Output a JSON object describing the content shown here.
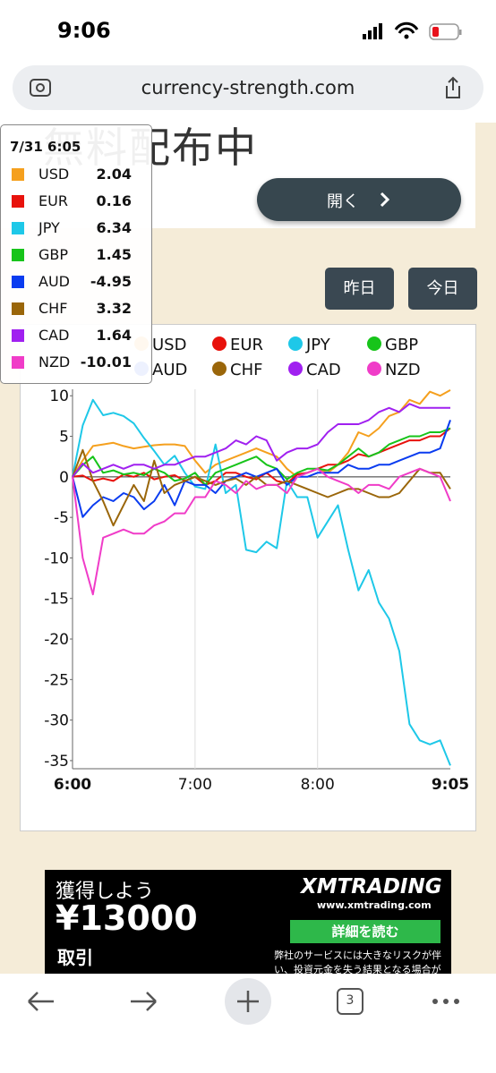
{
  "status_bar": {
    "time": "9:06"
  },
  "browser": {
    "url": "currency-strength.com",
    "tab_count": 3
  },
  "banner": {
    "title": "無料配布中",
    "button": "開く"
  },
  "day_buttons": [
    "昨日",
    "今日"
  ],
  "tooltip": {
    "title": "7/31 6:05"
  },
  "chart_data": {
    "type": "line",
    "categories": [
      "6:00",
      null,
      null,
      null,
      null,
      null,
      null,
      null,
      null,
      null,
      null,
      null,
      "7:00",
      null,
      null,
      null,
      null,
      null,
      null,
      null,
      null,
      null,
      null,
      null,
      "8:00",
      null,
      null,
      null,
      null,
      null,
      null,
      null,
      null,
      null,
      null,
      null,
      null,
      "9:05"
    ],
    "ylim": [
      -36,
      10.8
    ],
    "yticks": [
      10,
      5,
      0,
      -5,
      -10,
      -15,
      -20,
      -25,
      -30,
      -35
    ],
    "legend": "top",
    "series": [
      {
        "name": "USD",
        "color": "#f5a01e",
        "values": [
          0,
          2.04,
          3.8,
          4,
          4.2,
          3.8,
          3.5,
          3.7,
          3.9,
          4,
          4,
          3.8,
          2,
          0.5,
          1.5,
          2,
          2.5,
          3,
          3.5,
          3,
          2.5,
          1,
          0,
          0.5,
          1,
          0.5,
          1.5,
          3,
          5.5,
          5,
          6,
          7.5,
          8,
          9.5,
          9,
          10.5,
          10,
          10.7
        ]
      },
      {
        "name": "EUR",
        "color": "#e8120c",
        "values": [
          0,
          0.16,
          -0.5,
          -0.2,
          -0.5,
          0.3,
          0,
          0.5,
          -0.3,
          0,
          0.2,
          -0.5,
          0,
          -1,
          -0.5,
          0.5,
          0.5,
          0,
          -0.3,
          0.5,
          -0.5,
          -0.8,
          0.3,
          0.5,
          1,
          1.5,
          1.5,
          2,
          2.8,
          2.5,
          3,
          3.5,
          4,
          4.5,
          4.5,
          5,
          5,
          6
        ]
      },
      {
        "name": "JPY",
        "color": "#1ec8e8",
        "values": [
          0,
          6.34,
          9.5,
          7.6,
          7.9,
          7.5,
          6.6,
          4.8,
          3.2,
          1.5,
          2.6,
          0.5,
          -1.2,
          -1.5,
          4,
          -2,
          -1,
          -9,
          -9.3,
          -8,
          -8.8,
          -0.5,
          -2.5,
          -2.5,
          -7.5,
          -5.5,
          -3.5,
          -9,
          -14,
          -11.5,
          -15.5,
          -17.5,
          -21.5,
          -30.5,
          -32.5,
          -33,
          -32.5,
          -35.6
        ]
      },
      {
        "name": "GBP",
        "color": "#17c41a",
        "values": [
          0,
          1.45,
          2.5,
          0.5,
          0.8,
          0.3,
          0.5,
          0.2,
          1,
          0.5,
          -0.5,
          -0.2,
          0.5,
          -1,
          0.5,
          1,
          1.5,
          2,
          2.5,
          1.5,
          1,
          -0.3,
          0.5,
          1,
          1,
          0.8,
          1.5,
          2.5,
          3.5,
          2.5,
          3,
          4,
          4.5,
          5,
          5,
          5.5,
          5.5,
          6
        ]
      },
      {
        "name": "AUD",
        "color": "#0a3cf0",
        "values": [
          0,
          -4.95,
          -3.5,
          -2.5,
          -3,
          -2,
          -2.5,
          -4,
          -3,
          -1,
          -3.5,
          -0.5,
          -1,
          -1,
          -2,
          -0.5,
          0,
          0.5,
          0,
          0.5,
          1,
          -1,
          0,
          0,
          0.5,
          0.5,
          0.5,
          1.5,
          1,
          1,
          1.5,
          1.5,
          2,
          2.5,
          3,
          3,
          3.5,
          7
        ]
      },
      {
        "name": "CHF",
        "color": "#9a660a",
        "values": [
          0,
          3.32,
          -0.5,
          -3,
          -6,
          -3.5,
          -1,
          -3,
          2,
          -2,
          -1,
          -0.5,
          0,
          -0.5,
          -1,
          -0.5,
          -0.2,
          -1,
          0,
          -1,
          -1,
          -0.5,
          -1,
          -1.5,
          -2,
          -2.5,
          -2,
          -1.5,
          -1.5,
          -2,
          -2.5,
          -2.5,
          -2,
          -0.5,
          1,
          0.5,
          0.5,
          -1.5
        ]
      },
      {
        "name": "CAD",
        "color": "#a020f0",
        "values": [
          0,
          1.64,
          0.5,
          1,
          1.5,
          1,
          1.5,
          1.5,
          1,
          1.5,
          1.5,
          2,
          2.5,
          2.5,
          3,
          3.5,
          4.5,
          4,
          5,
          4.5,
          2,
          3,
          3.5,
          3.5,
          4,
          5.5,
          6.5,
          6.5,
          6.5,
          7,
          8,
          8.5,
          8,
          9,
          8.5,
          8.5,
          8.5,
          8.5
        ]
      },
      {
        "name": "NZD",
        "color": "#f03cc8",
        "values": [
          0,
          -10.01,
          -14.5,
          -7.5,
          -7,
          -6.5,
          -7,
          -7,
          -6,
          -5.5,
          -4.5,
          -4.5,
          -2.5,
          -2.5,
          -0.5,
          -1,
          -2,
          -0.5,
          -1.5,
          -1,
          -1,
          -2,
          0,
          0.5,
          1,
          0,
          -0.5,
          -1,
          -2,
          -1,
          -1,
          -1.5,
          0,
          0.5,
          1,
          0.5,
          0,
          -3
        ]
      }
    ]
  },
  "ad": {
    "headline": "獲得しよう",
    "amount": "¥13000",
    "line3": "取引",
    "brand": "XMTRADING",
    "site": "www.xmtrading.com",
    "cta": "詳細を読む",
    "disclaimer": "弊社のサービスには大きなリスクが伴い、投資元金を失う結果となる場合が"
  }
}
